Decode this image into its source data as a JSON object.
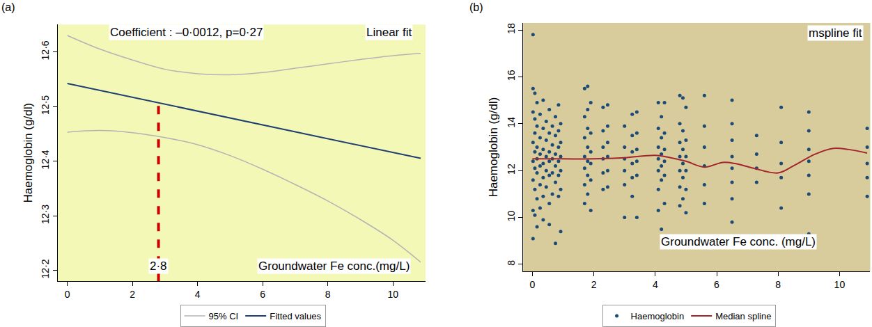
{
  "chart_data": [
    {
      "type": "line",
      "title": "(a)",
      "y_label": "Haemoglobin (g/dl)",
      "x_label": "Groundwater Fe conc.(mg/L)",
      "annotations": [
        "Coefficient : –0·0012, p=0·27",
        "Linear fit"
      ],
      "reference_line": {
        "x": 2.8,
        "label": "2·8",
        "y_end": 12.505,
        "color": "#cc0000",
        "line_style": "dashed"
      },
      "xlim": [
        -0.3,
        11.0
      ],
      "xticks": [
        0,
        2,
        4,
        6,
        8,
        10
      ],
      "ylim": [
        12.18,
        12.65
      ],
      "yticks": [
        {
          "value": 12.2,
          "label": "12·2"
        },
        {
          "value": 12.3,
          "label": "12·3"
        },
        {
          "value": 12.4,
          "label": "12·4"
        },
        {
          "value": 12.5,
          "label": "12·5"
        },
        {
          "value": 12.6,
          "label": "12·6"
        }
      ],
      "legend": "bottom",
      "series": [
        {
          "name": "95% CI",
          "color": "#b4b4b4",
          "x": [
            0,
            1,
            2,
            3,
            4,
            5,
            6,
            7,
            8,
            9,
            10,
            10.85
          ],
          "upper": [
            12.63,
            12.605,
            12.585,
            12.568,
            12.56,
            12.558,
            12.562,
            12.57,
            12.578,
            12.586,
            12.593,
            12.597
          ],
          "lower": [
            12.453,
            12.456,
            12.452,
            12.443,
            12.43,
            12.41,
            12.385,
            12.357,
            12.327,
            12.293,
            12.255,
            12.215
          ]
        },
        {
          "name": "Fitted values",
          "color": "#1f3f73",
          "x": [
            0,
            10.85
          ],
          "values": [
            12.542,
            12.405
          ]
        }
      ]
    },
    {
      "type": "scatter",
      "title": "(b)",
      "y_label": "Haemoglobin (g/dl)",
      "x_label": "Groundwater Fe conc. (mg/L)",
      "annotations": [
        "mspline fit"
      ],
      "xlim": [
        -0.3,
        11.0
      ],
      "xticks": [
        0,
        2,
        4,
        6,
        8,
        10
      ],
      "ylim": [
        7.7,
        18.3
      ],
      "yticks": [
        8,
        10,
        12,
        14,
        16,
        18
      ],
      "legend": "bottom",
      "series": [
        {
          "name": "Haemoglobin",
          "type": "scatter",
          "marker": "circle",
          "color": "#1b4a76",
          "x": [
            0.02,
            0.02,
            0.02,
            0.02,
            0.02,
            0.02,
            0.02,
            0.02,
            0.08,
            0.08,
            0.08,
            0.08,
            0.08,
            0.08,
            0.08,
            0.15,
            0.15,
            0.15,
            0.15,
            0.15,
            0.15,
            0.15,
            0.25,
            0.25,
            0.25,
            0.25,
            0.25,
            0.25,
            0.35,
            0.35,
            0.35,
            0.35,
            0.35,
            0.35,
            0.35,
            0.45,
            0.45,
            0.45,
            0.45,
            0.45,
            0.55,
            0.55,
            0.55,
            0.55,
            0.55,
            0.55,
            0.55,
            0.65,
            0.65,
            0.65,
            0.65,
            0.65,
            0.75,
            0.75,
            0.75,
            0.75,
            0.75,
            0.75,
            0.85,
            0.85,
            0.85,
            0.85,
            0.85,
            0.85,
            0.92,
            0.92,
            0.92,
            0.92,
            0.92,
            0.92,
            1.7,
            1.7,
            1.7,
            1.7,
            1.7,
            1.7,
            1.7,
            1.8,
            1.8,
            1.8,
            1.8,
            1.8,
            1.8,
            1.8,
            1.9,
            1.9,
            1.9,
            1.9,
            1.9,
            1.9,
            2.3,
            2.3,
            2.3,
            2.3,
            2.3,
            2.3,
            2.45,
            2.45,
            2.45,
            2.45,
            2.45,
            2.45,
            3.0,
            3.0,
            3.0,
            3.0,
            3.0,
            3.0,
            3.25,
            3.25,
            3.25,
            3.25,
            3.25,
            3.25,
            3.4,
            3.4,
            3.4,
            3.4,
            3.4,
            3.4,
            4.1,
            4.1,
            4.1,
            4.1,
            4.1,
            4.1,
            4.1,
            4.2,
            4.2,
            4.2,
            4.2,
            4.2,
            4.2,
            4.3,
            4.3,
            4.3,
            4.3,
            4.3,
            4.3,
            4.8,
            4.8,
            4.8,
            4.8,
            4.8,
            4.8,
            4.8,
            4.9,
            4.9,
            4.9,
            4.9,
            4.9,
            4.9,
            5.0,
            5.0,
            5.0,
            5.0,
            5.0,
            5.0,
            5.6,
            5.6,
            5.6,
            5.6,
            5.6,
            5.6,
            6.5,
            6.5,
            6.5,
            6.5,
            6.5,
            6.5,
            6.5,
            6.5,
            7.3,
            7.3,
            7.3,
            7.3,
            8.1,
            8.1,
            8.1,
            8.1,
            8.1,
            9.0,
            9.0,
            9.0,
            9.0,
            9.0,
            9.0,
            9.0,
            10.9,
            10.9,
            10.9,
            10.9,
            10.9
          ],
          "values": [
            17.8,
            15.5,
            14.5,
            13.2,
            12.4,
            11.6,
            10.3,
            9.1,
            15.3,
            14.2,
            13.6,
            12.8,
            12.1,
            11.2,
            10.1,
            14.9,
            13.9,
            13.0,
            12.5,
            11.9,
            10.8,
            9.6,
            14.4,
            13.4,
            12.7,
            12.2,
            11.4,
            10.4,
            15.0,
            13.8,
            12.9,
            12.3,
            11.7,
            10.9,
            9.9,
            14.1,
            13.3,
            12.6,
            12.0,
            11.3,
            14.6,
            13.6,
            12.8,
            12.4,
            11.8,
            10.6,
            9.7,
            13.9,
            13.1,
            12.5,
            11.9,
            11.0,
            14.3,
            13.5,
            12.7,
            12.2,
            11.5,
            8.9,
            14.8,
            13.7,
            13.0,
            12.4,
            11.8,
            10.9,
            14.0,
            13.2,
            12.6,
            12.0,
            11.2,
            9.4,
            15.5,
            14.3,
            13.4,
            12.6,
            12.1,
            11.4,
            10.6,
            15.6,
            14.6,
            13.8,
            13.0,
            12.4,
            11.8,
            11.0,
            14.9,
            13.6,
            12.8,
            12.3,
            11.6,
            10.3,
            14.7,
            13.7,
            13.0,
            12.5,
            11.9,
            11.2,
            14.8,
            13.9,
            13.2,
            12.6,
            12.0,
            11.3,
            13.9,
            13.0,
            12.5,
            12.0,
            11.4,
            10.0,
            14.4,
            13.5,
            12.8,
            12.3,
            11.7,
            10.9,
            14.5,
            13.6,
            12.9,
            12.4,
            11.8,
            10.0,
            14.9,
            13.8,
            13.0,
            12.5,
            12.0,
            11.2,
            10.3,
            14.3,
            13.4,
            12.7,
            12.2,
            11.6,
            9.5,
            14.9,
            13.6,
            12.9,
            12.4,
            11.8,
            10.6,
            15.2,
            14.0,
            13.2,
            12.6,
            12.0,
            11.3,
            10.5,
            15.1,
            13.7,
            12.9,
            12.3,
            11.7,
            10.8,
            14.7,
            13.3,
            12.6,
            12.0,
            11.2,
            10.2,
            15.2,
            13.9,
            13.0,
            12.2,
            11.4,
            10.6,
            15.0,
            14.0,
            13.3,
            12.6,
            12.1,
            11.5,
            10.8,
            9.8,
            13.5,
            12.7,
            12.1,
            11.5,
            14.7,
            13.2,
            12.3,
            11.7,
            10.4,
            14.5,
            13.7,
            12.9,
            12.4,
            11.8,
            11.0,
            9.3,
            13.8,
            13.0,
            12.3,
            11.7,
            10.9
          ]
        },
        {
          "name": "Median spline",
          "type": "line",
          "color": "#a3262e",
          "x": [
            0,
            1,
            2,
            3,
            4,
            4.5,
            5,
            5.6,
            6.2,
            6.6,
            7.2,
            8,
            8.5,
            9.2,
            9.8,
            10.3,
            10.9
          ],
          "values": [
            12.5,
            12.5,
            12.5,
            12.55,
            12.65,
            12.55,
            12.4,
            12.15,
            12.35,
            12.3,
            12.1,
            11.9,
            12.2,
            12.7,
            12.95,
            12.9,
            12.75
          ]
        }
      ]
    }
  ]
}
